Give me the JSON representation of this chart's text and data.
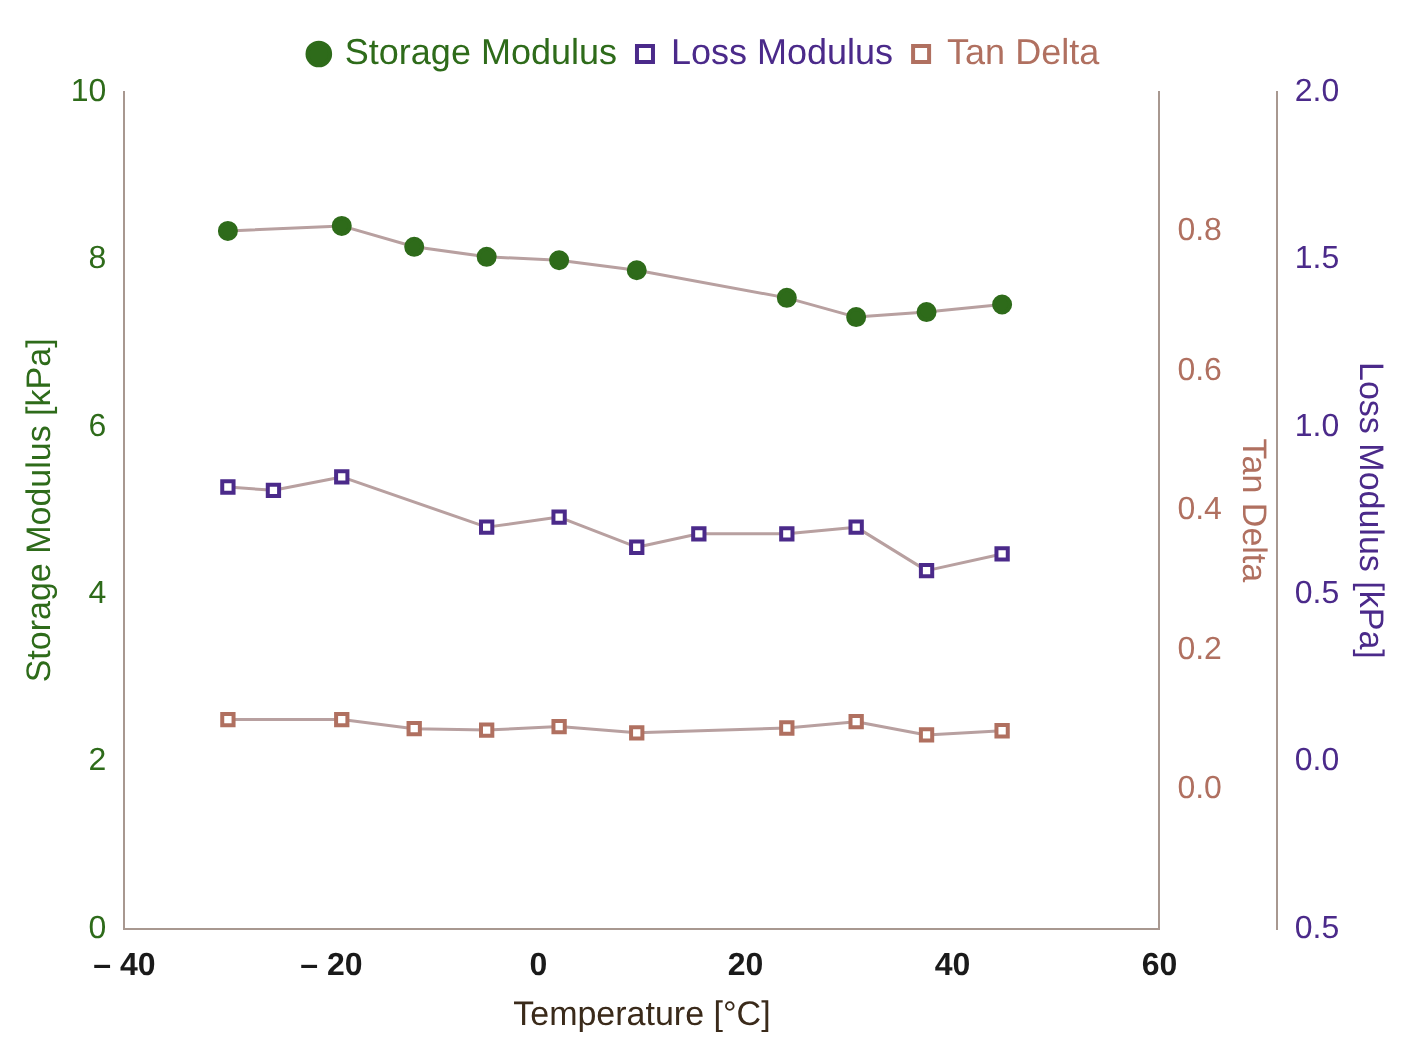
{
  "chart_data": {
    "type": "line",
    "xlabel": "Temperature [°C]",
    "ylabel": "Storage Modulus [kPa]",
    "y2label": "Tan Delta",
    "y3label": "Loss Modulus [kPa]",
    "xlim": [
      -40,
      60
    ],
    "xticks": [
      {
        "value": -40,
        "label": "– 40"
      },
      {
        "value": -20,
        "label": "– 20"
      },
      0,
      20,
      40,
      60
    ],
    "ylim": [
      0,
      10
    ],
    "yticks": [
      0,
      2,
      4,
      6,
      8,
      10
    ],
    "y2lim": [
      -0.2,
      1.0
    ],
    "y2ticks": [
      {
        "value": 0,
        "label": "0.0"
      },
      0.2,
      0.4,
      0.6,
      0.8
    ],
    "y3lim": [
      -0.5,
      2.0
    ],
    "y3ticks": [
      {
        "value": -0.5,
        "label": "0.5"
      },
      {
        "value": 0,
        "label": "0.0"
      },
      0.5,
      {
        "value": 1,
        "label": "1.0"
      },
      1.5,
      {
        "value": 2,
        "label": "2.0"
      }
    ],
    "legend": "top",
    "grid": false,
    "series": [
      {
        "name": "Storage Modulus",
        "color": "#2e6b1a",
        "marker": "circle",
        "x": [
          -30,
          -19,
          -12,
          -5,
          2,
          9.5,
          24,
          30.7,
          37.5,
          44.8
        ],
        "values": [
          8.34,
          8.4,
          8.15,
          8.03,
          7.99,
          7.87,
          7.54,
          7.31,
          7.37,
          7.46
        ]
      },
      {
        "name": "Loss Modulus",
        "color": "#4b2a8a",
        "marker": "square",
        "axis": "y3",
        "x": [
          -30,
          -25.6,
          -19,
          -5,
          2,
          9.5,
          15.5,
          24,
          30.7,
          37.5,
          44.8
        ],
        "values": [
          0.82,
          0.81,
          0.85,
          0.7,
          0.73,
          0.64,
          0.68,
          0.68,
          0.7,
          0.57,
          0.62
        ]
      },
      {
        "name": "Tan Delta",
        "color": "#b07060",
        "marker": "square",
        "axis": "y2",
        "x": [
          -30,
          -19,
          -12,
          -5,
          2,
          9.5,
          24,
          30.7,
          37.5,
          44.8
        ],
        "values": [
          0.1,
          0.1,
          0.087,
          0.085,
          0.09,
          0.081,
          0.088,
          0.097,
          0.078,
          0.084
        ]
      }
    ]
  }
}
